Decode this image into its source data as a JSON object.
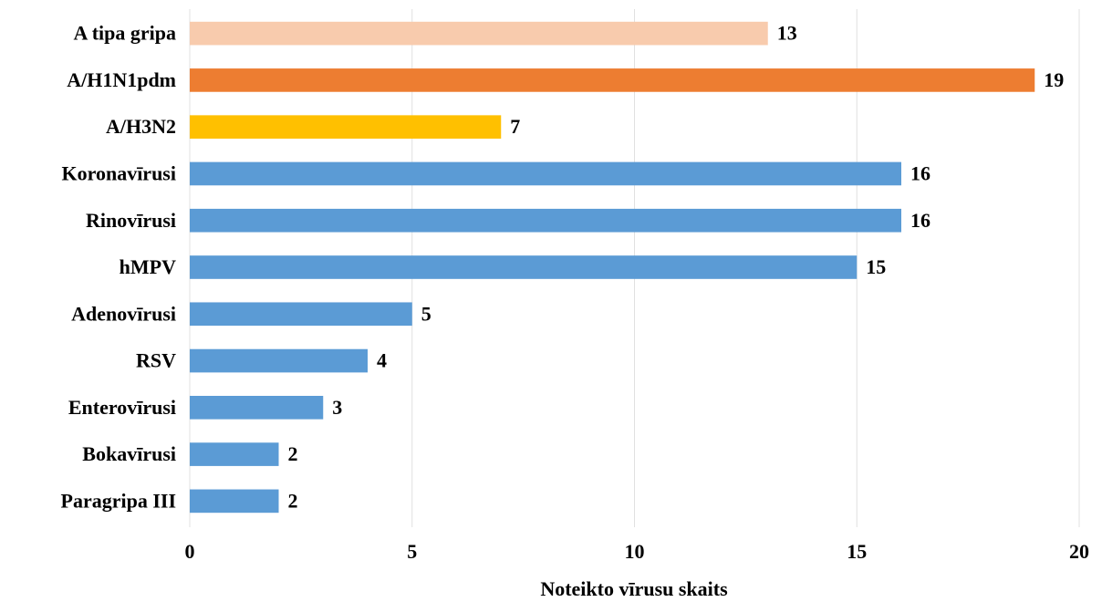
{
  "chart_data": {
    "type": "bar",
    "orientation": "horizontal",
    "x_label": "Noteikto vīrusu skaits",
    "categories": [
      "A tipa gripa",
      "A/H1N1pdm",
      "A/H3N2",
      "Koronavīrusi",
      "Rinovīrusi",
      "hMPV",
      "Adenovīrusi",
      "RSV",
      "Enterovīrusi",
      "Bokavīrusi",
      "Paragripa III"
    ],
    "values": [
      13,
      19,
      7,
      16,
      16,
      15,
      5,
      4,
      3,
      2,
      2
    ],
    "colors": [
      "#F8CBAD",
      "#ED7D31",
      "#FFC000",
      "#5B9BD5",
      "#5B9BD5",
      "#5B9BD5",
      "#5B9BD5",
      "#5B9BD5",
      "#5B9BD5",
      "#5B9BD5",
      "#5B9BD5"
    ],
    "xlim": [
      0,
      20
    ],
    "xticks": [
      0,
      5,
      10,
      15,
      20
    ],
    "grid": true
  }
}
